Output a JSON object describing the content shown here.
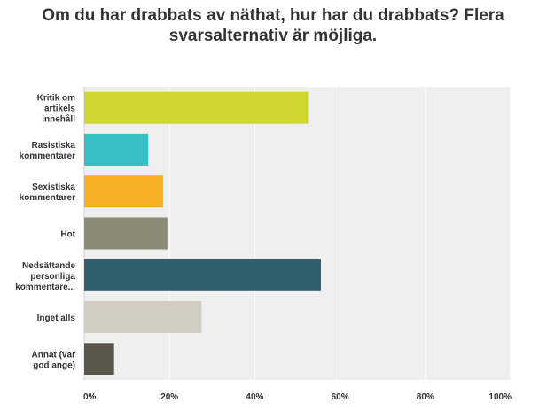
{
  "chart_data": {
    "type": "bar",
    "orientation": "horizontal",
    "title": "Om du har drabbats av näthat, hur har du drabbats? Flera svarsalternativ är möjliga.",
    "categories": [
      [
        "Kritik om",
        "artikels",
        "innehåll"
      ],
      [
        "Rasistiska",
        "kommentarer"
      ],
      [
        "Sexistiska",
        "kommentarer"
      ],
      [
        "Hot"
      ],
      [
        "Nedsättande",
        "personliga",
        "kommentare..."
      ],
      [
        "Inget alls"
      ],
      [
        "Annat (var",
        "god ange)"
      ]
    ],
    "values": [
      52.5,
      15.0,
      18.5,
      19.5,
      55.5,
      27.5,
      7.0
    ],
    "colors": [
      "#cdd52f",
      "#35bfc4",
      "#f6ae22",
      "#8a8a78",
      "#2d5f6c",
      "#cfcdc0",
      "#58574a"
    ],
    "xlim": [
      0,
      100
    ],
    "xticks": [
      "0%",
      "20%",
      "40%",
      "60%",
      "80%",
      "100%"
    ],
    "grid": true,
    "legend": "none"
  }
}
